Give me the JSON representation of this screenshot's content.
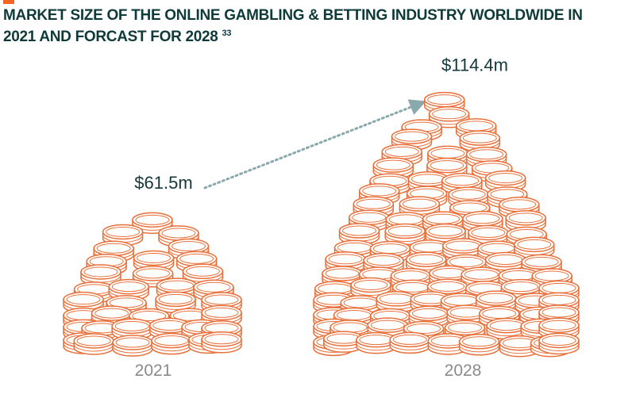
{
  "chart_data": {
    "type": "coin-pile",
    "title": "MARKET SIZE OF THE ONLINE GAMBLING & BETTING INDUSTRY WORLDWIDE IN 2021 AND FORCAST FOR 2028",
    "title_note": "33",
    "categories": [
      "2021",
      "2028"
    ],
    "values": [
      61.5,
      114.4
    ],
    "value_labels": [
      "$61.5m",
      "$114.4m"
    ],
    "color": "#e8703a"
  }
}
